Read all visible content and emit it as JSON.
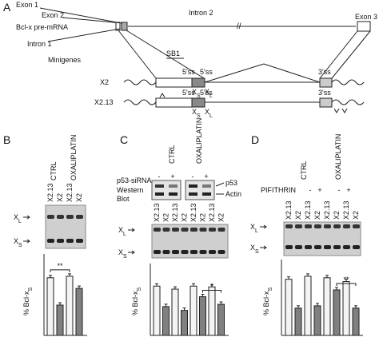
{
  "panel_a": {
    "label": "A",
    "exon1": "Exon 1",
    "exon2": "Exon 2",
    "intron1": "Intron 1",
    "intron2": "Intron 2",
    "exon3": "Exon 3",
    "pre_mrna": "Bcl-x pre-mRNA",
    "minigenes": "Minigenes",
    "sb1": "SB1",
    "ss5": "5'ss",
    "ss3": "3'ss",
    "rows": [
      "X2",
      "X2.13"
    ],
    "xs": {
      "main": "X",
      "sub": "S"
    },
    "xl": {
      "main": "X",
      "sub": "L"
    }
  },
  "panel_b": {
    "label": "B",
    "conditions": [
      "CTRL",
      "OXALIPLATIN"
    ],
    "lanes": [
      "X2.13",
      "X2",
      "X2.13",
      "X2"
    ],
    "xl": {
      "main": "X",
      "sub": "L"
    },
    "xs": {
      "main": "X",
      "sub": "S"
    },
    "ylabel": {
      "main": "% Bcl-x",
      "sub": "S"
    },
    "values": [
      76,
      40,
      78,
      62
    ],
    "significance": "**"
  },
  "panel_c": {
    "label": "C",
    "conditions": [
      "CTRL",
      "OXALIPLATIN"
    ],
    "sirna": "p53-siRNA",
    "western": "Western",
    "blot": "Blot",
    "signs": [
      "-",
      "+",
      "-",
      "+"
    ],
    "p53": "p53",
    "actin": "Actin",
    "lanes": [
      "X2.13",
      "X2",
      "X2.13",
      "X2",
      "X2.13",
      "X2",
      "X2.13",
      "X2"
    ],
    "xl": {
      "main": "X",
      "sub": "L"
    },
    "xs": {
      "main": "X",
      "sub": "S"
    },
    "ylabel": {
      "main": "% Bcl-x",
      "sub": "S"
    },
    "values": [
      65,
      38,
      61,
      33,
      65,
      51,
      64,
      41
    ],
    "significance": "*"
  },
  "panel_d": {
    "label": "D",
    "conditions": [
      "CTRL",
      "OXALIPLATIN"
    ],
    "pifithrin": "PIFITHRIN",
    "signs": [
      "-",
      "+",
      "-",
      "+"
    ],
    "lanes": [
      "X2.13",
      "X2",
      "X2.13",
      "X2",
      "X2.13",
      "X2",
      "X2.13",
      "X2"
    ],
    "xl": {
      "main": "X",
      "sub": "L"
    },
    "xs": {
      "main": "X",
      "sub": "S"
    },
    "ylabel": {
      "main": "% Bcl-x",
      "sub": "S"
    },
    "values": [
      74,
      36,
      78,
      39,
      76,
      60,
      71,
      36
    ],
    "significance": "**"
  }
}
